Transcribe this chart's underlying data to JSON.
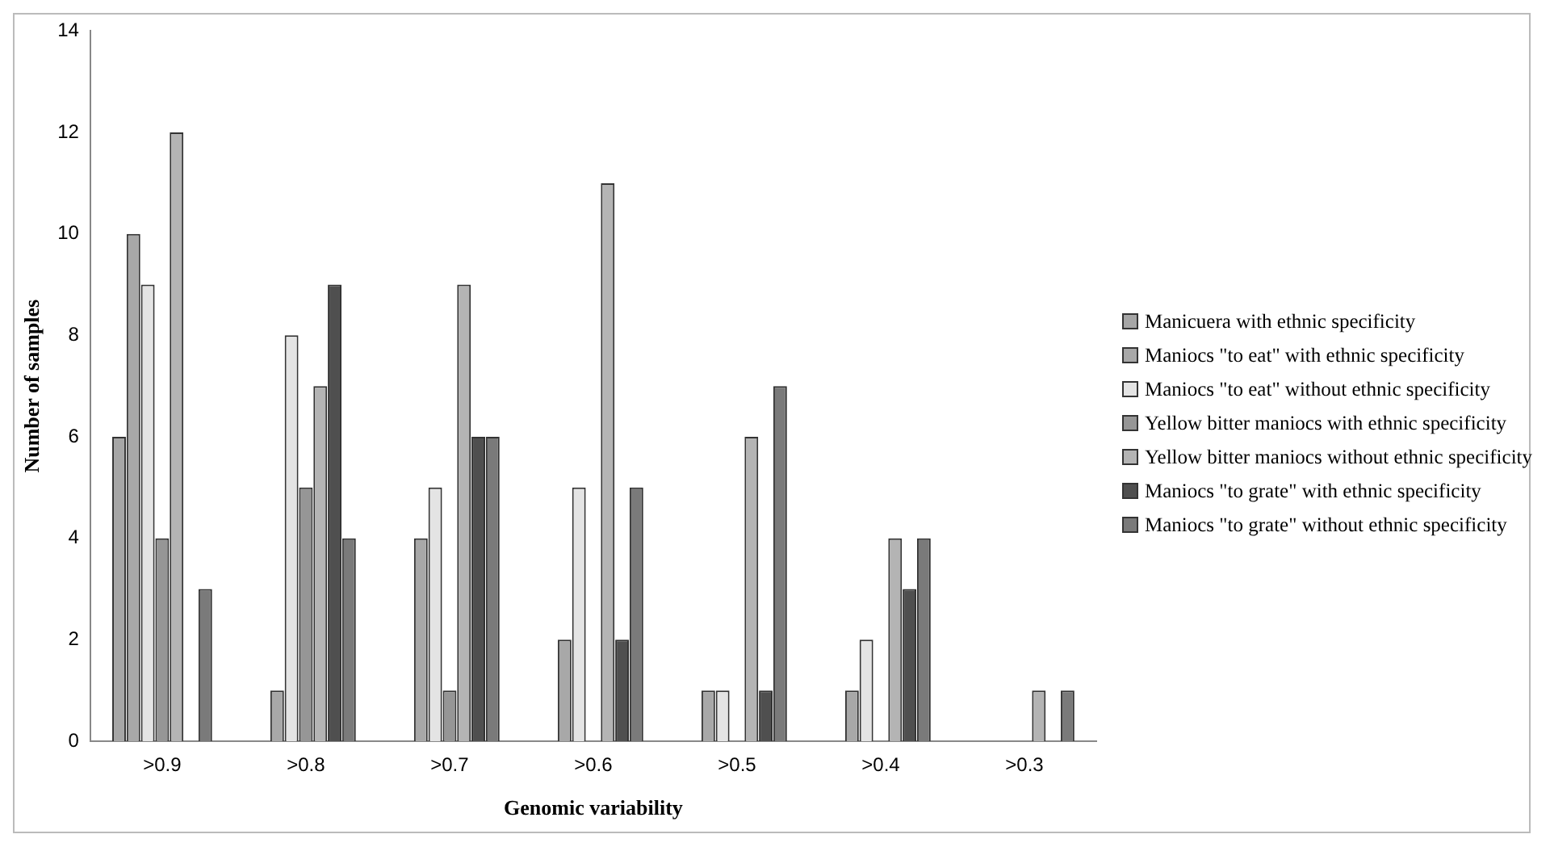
{
  "chart_data": {
    "type": "bar",
    "xlabel": "Genomic variability",
    "ylabel": "Number of samples",
    "categories": [
      ">0.9",
      ">0.8",
      ">0.7",
      ">0.6",
      ">0.5",
      ">0.4",
      ">0.3"
    ],
    "series": [
      {
        "name": "Manicuera with ethnic specificity",
        "color": "#a6a6a6",
        "values": [
          6,
          0,
          0,
          0,
          0,
          0,
          0
        ]
      },
      {
        "name": "Maniocs \"to eat\" with ethnic specificity",
        "color": "#a8a8a8",
        "values": [
          10,
          1,
          4,
          2,
          1,
          1,
          0
        ]
      },
      {
        "name": "Maniocs \"to eat\" without ethnic specificity",
        "color": "#e4e4e4",
        "values": [
          9,
          8,
          5,
          5,
          1,
          2,
          0
        ]
      },
      {
        "name": "Yellow bitter maniocs with ethnic specificity",
        "color": "#969696",
        "values": [
          4,
          5,
          1,
          0,
          0,
          0,
          0
        ]
      },
      {
        "name": "Yellow bitter maniocs without ethnic specificity",
        "color": "#b4b4b4",
        "values": [
          12,
          7,
          9,
          11,
          6,
          4,
          1
        ]
      },
      {
        "name": "Maniocs \"to grate\" with ethnic specificity",
        "color": "#4f4f4f",
        "values": [
          0,
          9,
          6,
          2,
          1,
          3,
          0
        ]
      },
      {
        "name": "Maniocs \"to grate\" without ethnic specificity",
        "color": "#7a7a7a",
        "values": [
          3,
          4,
          6,
          5,
          7,
          4,
          1
        ]
      }
    ],
    "ylim": [
      0,
      14
    ],
    "yticks": [
      0,
      2,
      4,
      6,
      8,
      10,
      12,
      14
    ],
    "grid": false,
    "legend": "right"
  }
}
